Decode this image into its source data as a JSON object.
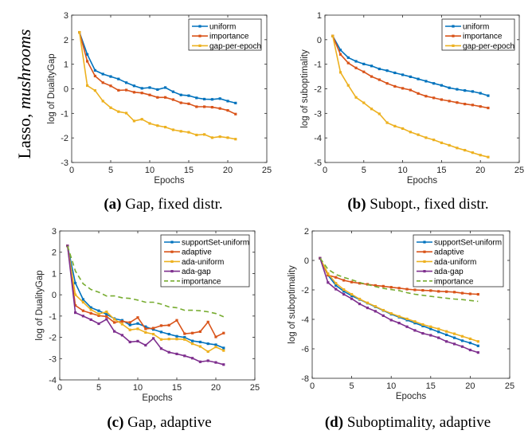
{
  "row_label": {
    "text": "Lasso, ",
    "dataset": "mushrooms"
  },
  "colors": {
    "blue": "#0072BD",
    "orange": "#D95319",
    "yellow": "#EDB120",
    "purple": "#7E2F8E",
    "green": "#77AC30"
  },
  "chart_data": [
    {
      "id": "a",
      "type": "line",
      "caption_label": "(a)",
      "caption_text": " Gap, fixed distr.",
      "xlabel": "Epochs",
      "ylabel": "log of DualityGap",
      "xlim": [
        0,
        25
      ],
      "ylim": [
        -3,
        3
      ],
      "xticks": [
        0,
        5,
        10,
        15,
        20,
        25
      ],
      "yticks": [
        -3,
        -2,
        -1,
        0,
        1,
        2,
        3
      ],
      "legend_position": "top-right",
      "x": [
        1,
        2,
        3,
        4,
        5,
        6,
        7,
        8,
        9,
        10,
        11,
        12,
        13,
        14,
        15,
        16,
        17,
        18,
        19,
        20,
        21
      ],
      "series": [
        {
          "name": "uniform",
          "color": "#0072BD",
          "style": "solid-marker",
          "values": [
            2.3,
            1.4,
            0.75,
            0.6,
            0.5,
            0.4,
            0.25,
            0.12,
            0.02,
            0.05,
            -0.03,
            0.05,
            -0.12,
            -0.25,
            -0.28,
            -0.37,
            -0.42,
            -0.43,
            -0.4,
            -0.5,
            -0.58
          ]
        },
        {
          "name": "importance",
          "color": "#D95319",
          "style": "solid-marker",
          "values": [
            2.3,
            1.12,
            0.52,
            0.25,
            0.12,
            -0.06,
            -0.05,
            -0.14,
            -0.17,
            -0.25,
            -0.35,
            -0.35,
            -0.44,
            -0.57,
            -0.61,
            -0.73,
            -0.73,
            -0.75,
            -0.8,
            -0.88,
            -1.03
          ]
        },
        {
          "name": "gap-per-epoch",
          "color": "#EDB120",
          "style": "solid-marker",
          "values": [
            2.3,
            0.13,
            -0.07,
            -0.5,
            -0.77,
            -0.93,
            -0.99,
            -1.31,
            -1.24,
            -1.41,
            -1.5,
            -1.56,
            -1.67,
            -1.73,
            -1.77,
            -1.88,
            -1.86,
            -1.99,
            -1.95,
            -1.99,
            -2.05
          ]
        }
      ]
    },
    {
      "id": "b",
      "type": "line",
      "caption_label": "(b)",
      "caption_text": " Subopt., fixed distr.",
      "xlabel": "Epochs",
      "ylabel": "log of suboptimality",
      "xlim": [
        0,
        25
      ],
      "ylim": [
        -5,
        1
      ],
      "xticks": [
        0,
        5,
        10,
        15,
        20,
        25
      ],
      "yticks": [
        -5,
        -4,
        -3,
        -2,
        -1,
        0,
        1
      ],
      "legend_position": "top-right",
      "x": [
        1,
        2,
        3,
        4,
        5,
        6,
        7,
        8,
        9,
        10,
        11,
        12,
        13,
        14,
        15,
        16,
        17,
        18,
        19,
        20,
        21
      ],
      "series": [
        {
          "name": "uniform",
          "color": "#0072BD",
          "style": "solid-marker",
          "values": [
            0.15,
            -0.42,
            -0.73,
            -0.88,
            -0.99,
            -1.07,
            -1.19,
            -1.26,
            -1.35,
            -1.43,
            -1.51,
            -1.6,
            -1.69,
            -1.78,
            -1.86,
            -1.96,
            -2.02,
            -2.07,
            -2.11,
            -2.18,
            -2.28
          ]
        },
        {
          "name": "importance",
          "color": "#D95319",
          "style": "solid-marker",
          "values": [
            0.15,
            -0.6,
            -0.95,
            -1.15,
            -1.31,
            -1.5,
            -1.63,
            -1.78,
            -1.9,
            -1.98,
            -2.05,
            -2.19,
            -2.3,
            -2.37,
            -2.44,
            -2.5,
            -2.56,
            -2.62,
            -2.66,
            -2.72,
            -2.78
          ]
        },
        {
          "name": "gap-per-epoch",
          "color": "#EDB120",
          "style": "solid-marker",
          "values": [
            0.15,
            -1.33,
            -1.86,
            -2.35,
            -2.57,
            -2.82,
            -3.02,
            -3.38,
            -3.52,
            -3.62,
            -3.76,
            -3.87,
            -3.99,
            -4.08,
            -4.2,
            -4.3,
            -4.41,
            -4.5,
            -4.6,
            -4.7,
            -4.78
          ]
        }
      ]
    },
    {
      "id": "c",
      "type": "line",
      "caption_label": "(c)",
      "caption_text": " Gap, adaptive",
      "xlabel": "Epochs",
      "ylabel": "log of DualityGap",
      "xlim": [
        0,
        25
      ],
      "ylim": [
        -4,
        3
      ],
      "xticks": [
        0,
        5,
        10,
        15,
        20,
        25
      ],
      "yticks": [
        -4,
        -3,
        -2,
        -1,
        0,
        1,
        2,
        3
      ],
      "legend_position": "top-right",
      "x": [
        1,
        2,
        3,
        4,
        5,
        6,
        7,
        8,
        9,
        10,
        11,
        12,
        13,
        14,
        15,
        16,
        17,
        18,
        19,
        20,
        21
      ],
      "series": [
        {
          "name": "supportSet-uniform",
          "color": "#0072BD",
          "style": "solid-marker",
          "values": [
            2.3,
            0.55,
            -0.22,
            -0.6,
            -0.75,
            -0.92,
            -1.12,
            -1.2,
            -1.42,
            -1.35,
            -1.5,
            -1.63,
            -1.75,
            -1.85,
            -1.95,
            -2.0,
            -2.17,
            -2.22,
            -2.3,
            -2.35,
            -2.5
          ]
        },
        {
          "name": "adaptive",
          "color": "#D95319",
          "style": "solid-marker",
          "values": [
            2.3,
            -0.5,
            -0.75,
            -0.87,
            -0.98,
            -1.02,
            -1.3,
            -1.25,
            -1.3,
            -1.07,
            -1.6,
            -1.57,
            -1.45,
            -1.43,
            -1.2,
            -1.83,
            -1.8,
            -1.73,
            -1.28,
            -1.98,
            -1.8
          ]
        },
        {
          "name": "ada-uniform",
          "color": "#EDB120",
          "style": "solid-marker",
          "values": [
            2.3,
            0.0,
            -0.35,
            -0.7,
            -0.9,
            -0.8,
            -1.15,
            -1.38,
            -1.65,
            -1.6,
            -1.77,
            -1.85,
            -2.1,
            -2.08,
            -2.08,
            -2.1,
            -2.3,
            -2.43,
            -2.67,
            -2.45,
            -2.62
          ]
        },
        {
          "name": "ada-gap",
          "color": "#7E2F8E",
          "style": "solid-marker",
          "values": [
            2.3,
            -0.84,
            -1.0,
            -1.17,
            -1.36,
            -1.15,
            -1.72,
            -1.9,
            -2.22,
            -2.18,
            -2.37,
            -2.05,
            -2.53,
            -2.7,
            -2.78,
            -2.87,
            -2.98,
            -3.15,
            -3.1,
            -3.18,
            -3.28
          ]
        },
        {
          "name": "importance",
          "color": "#77AC30",
          "style": "dashed",
          "values": [
            2.3,
            1.12,
            0.52,
            0.25,
            0.12,
            -0.06,
            -0.05,
            -0.14,
            -0.17,
            -0.25,
            -0.35,
            -0.35,
            -0.44,
            -0.57,
            -0.61,
            -0.73,
            -0.73,
            -0.75,
            -0.8,
            -0.88,
            -1.03
          ]
        }
      ]
    },
    {
      "id": "d",
      "type": "line",
      "caption_label": "(d)",
      "caption_text": " Suboptimality, adaptive",
      "xlabel": "Epochs",
      "ylabel": "log of suboptimality",
      "xlim": [
        0,
        25
      ],
      "ylim": [
        -8,
        2
      ],
      "xticks": [
        0,
        5,
        10,
        15,
        20,
        25
      ],
      "yticks": [
        -8,
        -6,
        -4,
        -2,
        0,
        2
      ],
      "legend_position": "top-right",
      "x": [
        1,
        2,
        3,
        4,
        5,
        6,
        7,
        8,
        9,
        10,
        11,
        12,
        13,
        14,
        15,
        16,
        17,
        18,
        19,
        20,
        21
      ],
      "series": [
        {
          "name": "supportSet-uniform",
          "color": "#0072BD",
          "style": "solid-marker",
          "values": [
            0.15,
            -1.0,
            -1.7,
            -2.1,
            -2.4,
            -2.65,
            -2.9,
            -3.15,
            -3.4,
            -3.65,
            -3.85,
            -4.05,
            -4.25,
            -4.45,
            -4.65,
            -4.85,
            -5.05,
            -5.25,
            -5.45,
            -5.6,
            -5.8
          ]
        },
        {
          "name": "adaptive",
          "color": "#D95319",
          "style": "solid-marker",
          "values": [
            0.15,
            -1.0,
            -1.15,
            -1.35,
            -1.47,
            -1.55,
            -1.62,
            -1.7,
            -1.75,
            -1.82,
            -1.88,
            -1.95,
            -2.0,
            -2.03,
            -2.05,
            -2.1,
            -2.12,
            -2.15,
            -2.22,
            -2.27,
            -2.3
          ]
        },
        {
          "name": "ada-uniform",
          "color": "#EDB120",
          "style": "solid-marker",
          "values": [
            0.15,
            -0.9,
            -1.55,
            -1.98,
            -2.3,
            -2.62,
            -2.88,
            -3.12,
            -3.38,
            -3.6,
            -3.8,
            -3.97,
            -4.15,
            -4.35,
            -4.5,
            -4.65,
            -4.82,
            -4.98,
            -5.15,
            -5.32,
            -5.5
          ]
        },
        {
          "name": "ada-gap",
          "color": "#7E2F8E",
          "style": "solid-marker",
          "values": [
            0.15,
            -1.5,
            -1.95,
            -2.3,
            -2.6,
            -2.95,
            -3.22,
            -3.45,
            -3.75,
            -4.05,
            -4.25,
            -4.5,
            -4.75,
            -4.95,
            -5.08,
            -5.25,
            -5.5,
            -5.67,
            -5.85,
            -6.08,
            -6.25
          ]
        },
        {
          "name": "importance",
          "color": "#77AC30",
          "style": "dashed",
          "values": [
            0.15,
            -0.6,
            -0.95,
            -1.15,
            -1.31,
            -1.5,
            -1.63,
            -1.78,
            -1.9,
            -1.98,
            -2.05,
            -2.19,
            -2.3,
            -2.37,
            -2.44,
            -2.5,
            -2.56,
            -2.62,
            -2.66,
            -2.72,
            -2.78
          ]
        }
      ]
    }
  ]
}
